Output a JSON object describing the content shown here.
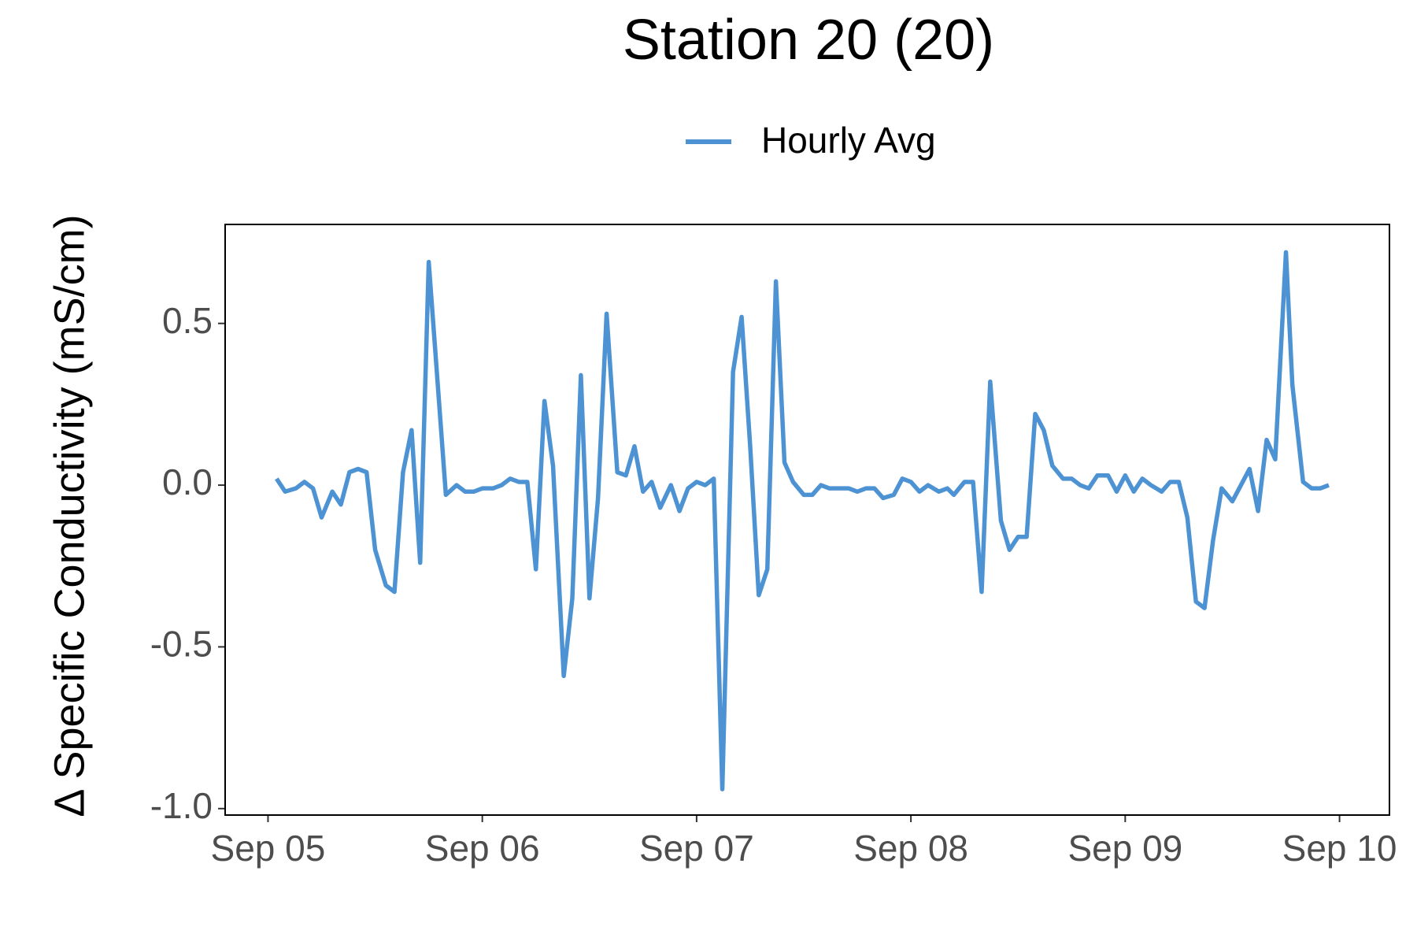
{
  "chart_data": {
    "type": "line",
    "title": "Station 20 (20)",
    "y_label": "Δ Specific Conductivity (mS/cm)",
    "legend_position": "top",
    "grid": false,
    "xlim": [
      -0.2,
      5.233
    ],
    "ylim": [
      -1.02,
      0.806
    ],
    "xticks": [
      {
        "value": 0,
        "label": "Sep 05"
      },
      {
        "value": 1,
        "label": "Sep 06"
      },
      {
        "value": 2,
        "label": "Sep 07"
      },
      {
        "value": 3,
        "label": "Sep 08"
      },
      {
        "value": 4,
        "label": "Sep 09"
      },
      {
        "value": 5,
        "label": "Sep 10"
      }
    ],
    "yticks": [
      {
        "value": 0.5,
        "label": "0.5"
      },
      {
        "value": 0,
        "label": "0.0"
      },
      {
        "value": -0.5,
        "label": "-0.5"
      },
      {
        "value": -1,
        "label": "-1.0"
      }
    ],
    "x": [
      0.04,
      0.08,
      0.13,
      0.17,
      0.21,
      0.25,
      0.3,
      0.34,
      0.38,
      0.42,
      0.46,
      0.5,
      0.55,
      0.59,
      0.63,
      0.67,
      0.71,
      0.75,
      0.8,
      0.83,
      0.88,
      0.92,
      0.96,
      1.0,
      1.05,
      1.09,
      1.13,
      1.17,
      1.21,
      1.25,
      1.29,
      1.33,
      1.38,
      1.42,
      1.46,
      1.5,
      1.54,
      1.58,
      1.63,
      1.67,
      1.71,
      1.75,
      1.79,
      1.83,
      1.88,
      1.92,
      1.96,
      2.0,
      2.04,
      2.08,
      2.12,
      2.17,
      2.21,
      2.25,
      2.29,
      2.33,
      2.37,
      2.41,
      2.45,
      2.5,
      2.54,
      2.58,
      2.62,
      2.67,
      2.71,
      2.75,
      2.79,
      2.83,
      2.87,
      2.92,
      2.96,
      3.0,
      3.04,
      3.08,
      3.13,
      3.17,
      3.2,
      3.25,
      3.29,
      3.33,
      3.37,
      3.42,
      3.46,
      3.5,
      3.54,
      3.58,
      3.62,
      3.66,
      3.71,
      3.75,
      3.79,
      3.83,
      3.87,
      3.92,
      3.96,
      4.0,
      4.04,
      4.08,
      4.12,
      4.17,
      4.21,
      4.25,
      4.29,
      4.33,
      4.37,
      4.41,
      4.45,
      4.5,
      4.54,
      4.58,
      4.62,
      4.66,
      4.7,
      4.75,
      4.78,
      4.83,
      4.87,
      4.91,
      4.95
    ],
    "series": [
      {
        "name": "Hourly Avg",
        "color": "#4d93d3",
        "values": [
          0.02,
          -0.02,
          -0.01,
          0.01,
          -0.01,
          -0.1,
          -0.02,
          -0.06,
          0.04,
          0.05,
          0.04,
          -0.2,
          -0.31,
          -0.33,
          0.04,
          0.17,
          -0.24,
          0.69,
          0.24,
          -0.03,
          0.0,
          -0.02,
          -0.02,
          -0.01,
          -0.01,
          0.0,
          0.02,
          0.01,
          0.01,
          -0.26,
          0.26,
          0.06,
          -0.59,
          -0.35,
          0.34,
          -0.35,
          -0.04,
          0.53,
          0.04,
          0.03,
          0.12,
          -0.02,
          0.01,
          -0.07,
          0.0,
          -0.08,
          -0.01,
          0.01,
          0.0,
          0.02,
          -0.94,
          0.35,
          0.52,
          0.12,
          -0.34,
          -0.26,
          0.63,
          0.07,
          0.01,
          -0.03,
          -0.03,
          0.0,
          -0.01,
          -0.01,
          -0.01,
          -0.02,
          -0.01,
          -0.01,
          -0.04,
          -0.03,
          0.02,
          0.01,
          -0.02,
          0.0,
          -0.02,
          -0.01,
          -0.03,
          0.01,
          0.01,
          -0.33,
          0.32,
          -0.11,
          -0.2,
          -0.16,
          -0.16,
          0.22,
          0.17,
          0.06,
          0.02,
          0.02,
          0.0,
          -0.01,
          0.03,
          0.03,
          -0.02,
          0.03,
          -0.02,
          0.02,
          0.0,
          -0.02,
          0.01,
          0.01,
          -0.1,
          -0.36,
          -0.38,
          -0.17,
          -0.01,
          -0.05,
          0.0,
          0.05,
          -0.08,
          0.14,
          0.08,
          0.72,
          0.31,
          0.01,
          -0.01,
          -0.01,
          0.0
        ]
      }
    ]
  }
}
